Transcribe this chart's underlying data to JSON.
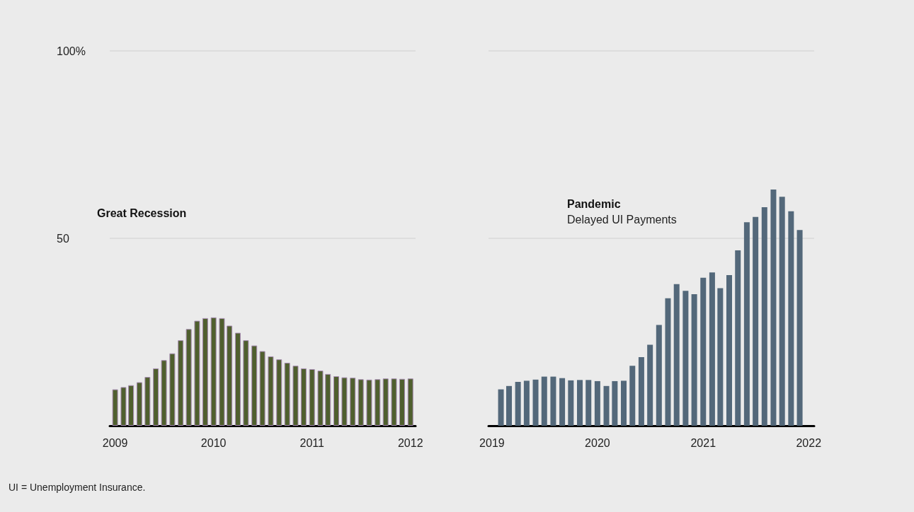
{
  "chart_data": [
    {
      "type": "bar",
      "title": "Great Recession",
      "x": [
        "2009-01",
        "2009-02",
        "2009-03",
        "2009-04",
        "2009-05",
        "2009-06",
        "2009-07",
        "2009-08",
        "2009-09",
        "2009-10",
        "2009-11",
        "2009-12",
        "2010-01",
        "2010-02",
        "2010-03",
        "2010-04",
        "2010-05",
        "2010-06",
        "2010-07",
        "2010-08",
        "2010-09",
        "2010-10",
        "2010-11",
        "2010-12",
        "2011-01",
        "2011-02",
        "2011-03",
        "2011-04",
        "2011-05",
        "2011-06",
        "2011-07",
        "2011-08",
        "2011-09",
        "2011-10",
        "2011-11",
        "2011-12",
        "2012-01"
      ],
      "values": [
        9.7,
        10.3,
        10.8,
        11.6,
        13.0,
        15.3,
        17.5,
        19.3,
        22.8,
        25.8,
        28.0,
        28.7,
        28.9,
        28.7,
        26.7,
        24.8,
        22.8,
        21.4,
        19.9,
        18.5,
        17.7,
        16.8,
        16.0,
        15.3,
        15.1,
        14.7,
        13.8,
        13.2,
        12.9,
        12.8,
        12.4,
        12.3,
        12.4,
        12.6,
        12.6,
        12.5,
        12.6
      ],
      "color": "#4f5f2e",
      "xlim": [
        "2008-12-12",
        "2012-01-20"
      ],
      "xticks": [
        "2009",
        "2010",
        "2011",
        "2012"
      ],
      "ylim": [
        0,
        100
      ],
      "yticks": [
        {
          "value": 50,
          "label": "50"
        },
        {
          "value": 100,
          "label": "100%"
        }
      ],
      "grid": "y",
      "annotations": [
        "UI = Unemployment Insurance."
      ]
    },
    {
      "type": "bar",
      "title": "Pandemic",
      "subtitle": "Delayed UI Payments",
      "x": [
        "2019-02",
        "2019-03",
        "2019-04",
        "2019-05",
        "2019-06",
        "2019-07",
        "2019-08",
        "2019-09",
        "2019-10",
        "2019-11",
        "2019-12",
        "2020-01",
        "2020-02",
        "2020-03",
        "2020-04",
        "2020-05",
        "2020-06",
        "2020-07",
        "2020-08",
        "2020-09",
        "2020-10",
        "2020-11",
        "2020-12",
        "2021-01",
        "2021-02",
        "2021-03",
        "2021-04",
        "2021-05",
        "2021-06",
        "2021-07",
        "2021-08",
        "2021-09",
        "2021-10",
        "2021-11",
        "2021-12"
      ],
      "values": [
        9.7,
        10.6,
        11.7,
        12.0,
        12.3,
        13.1,
        13.1,
        12.7,
        12.1,
        12.2,
        12.2,
        11.9,
        10.6,
        11.9,
        12.0,
        16.0,
        18.3,
        21.6,
        26.9,
        34.0,
        37.8,
        36.0,
        35.1,
        39.5,
        40.9,
        36.7,
        40.2,
        46.8,
        54.3,
        55.7,
        58.3,
        63.0,
        61.1,
        57.2,
        52.2
      ],
      "color": "#53687a",
      "xlim": [
        "2018-12-20",
        "2022-01-20"
      ],
      "xticks": [
        "2019",
        "2020",
        "2021",
        "2022"
      ],
      "ylim": [
        0,
        100
      ],
      "yticks": [
        50,
        100
      ],
      "grid": "y",
      "tick_labels": "x"
    }
  ]
}
